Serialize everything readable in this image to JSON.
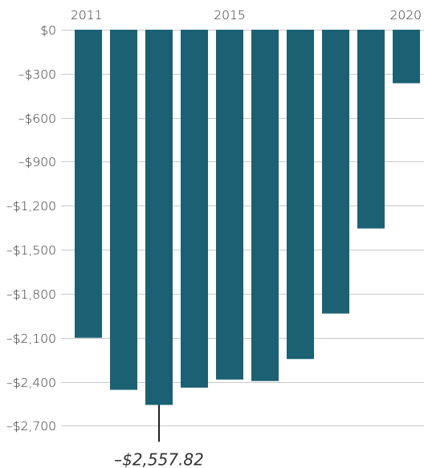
{
  "chart_data": {
    "type": "bar",
    "categories": [
      "2011",
      "2012",
      "2013",
      "2014",
      "2015",
      "2016",
      "2017",
      "2018",
      "2019",
      "2020"
    ],
    "x_tick_labels": [
      {
        "category": "2011",
        "text": "2011"
      },
      {
        "category": "2015",
        "text": "2015"
      },
      {
        "category": "2020",
        "text": "2020"
      }
    ],
    "values": [
      -2100,
      -2455,
      -2557.82,
      -2440,
      -2385,
      -2395,
      -2245,
      -1935,
      -1355,
      -365
    ],
    "y_ticks": [
      {
        "value": 0,
        "text": "$0"
      },
      {
        "value": -300,
        "text": "–$300"
      },
      {
        "value": -600,
        "text": "–$600"
      },
      {
        "value": -900,
        "text": "–$900"
      },
      {
        "value": -1200,
        "text": "–$1,200"
      },
      {
        "value": -1500,
        "text": "–$1,500"
      },
      {
        "value": -1800,
        "text": "–$1,800"
      },
      {
        "value": -2100,
        "text": "–$2,100"
      },
      {
        "value": -2400,
        "text": "–$2,400"
      },
      {
        "value": -2700,
        "text": "–$2,700"
      }
    ],
    "ylim": [
      -2800,
      0
    ],
    "grid": true,
    "annotation": {
      "category": "2013",
      "value": -2557.82,
      "text": "–$2,557.82"
    },
    "title": "",
    "xlabel": "",
    "ylabel": ""
  },
  "colors": {
    "bar": "#1b6173",
    "grid": "#c9c9c9",
    "text": "#333333",
    "annotation_line": "#222222"
  }
}
